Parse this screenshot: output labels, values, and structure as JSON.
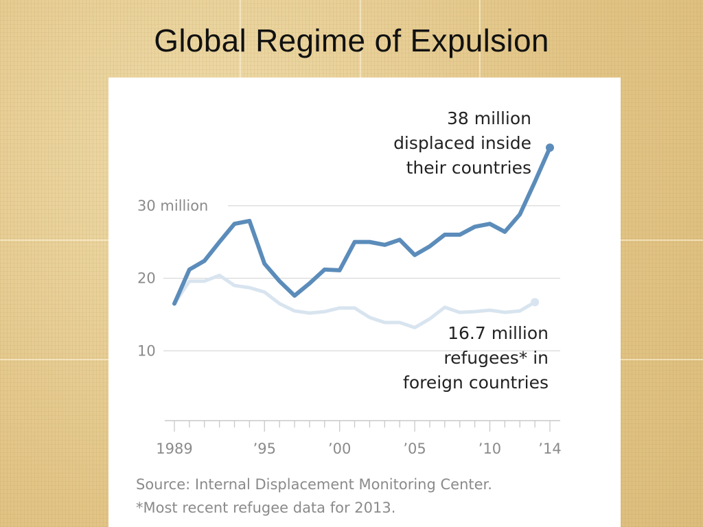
{
  "slide": {
    "title": "Global Regime of Expulsion"
  },
  "chart_data": {
    "type": "line",
    "x": [
      1989,
      1990,
      1991,
      1992,
      1993,
      1994,
      1995,
      1996,
      1997,
      1998,
      1999,
      2000,
      2001,
      2002,
      2003,
      2004,
      2005,
      2006,
      2007,
      2008,
      2009,
      2010,
      2011,
      2012,
      2013,
      2014
    ],
    "xlim": [
      1989,
      2014
    ],
    "ylim": [
      0,
      40
    ],
    "series": [
      {
        "id": "displaced",
        "color": "#5b8cba",
        "values": [
          16.5,
          21.2,
          22.4,
          25.0,
          27.5,
          27.9,
          22.0,
          19.6,
          17.6,
          19.3,
          21.2,
          21.1,
          25.0,
          25.0,
          24.6,
          25.3,
          23.2,
          24.4,
          26.0,
          26.0,
          27.1,
          27.5,
          26.4,
          28.8,
          33.3,
          38.0
        ]
      },
      {
        "id": "refugees",
        "color": "#d8e4ef",
        "values": [
          16.5,
          19.6,
          19.6,
          20.4,
          19.0,
          18.7,
          18.1,
          16.5,
          15.5,
          15.2,
          15.4,
          15.9,
          15.9,
          14.6,
          13.9,
          13.9,
          13.2,
          14.4,
          16.0,
          15.3,
          15.4,
          15.6,
          15.3,
          15.5,
          16.7,
          null
        ]
      }
    ],
    "y_ticks": [
      {
        "value": 30,
        "label": "30 million"
      },
      {
        "value": 20,
        "label": "20"
      },
      {
        "value": 10,
        "label": "10"
      }
    ],
    "x_ticks": [
      {
        "value": 1989,
        "label": "1989"
      },
      {
        "value": 1995,
        "label": "’95"
      },
      {
        "value": 2000,
        "label": "’00"
      },
      {
        "value": 2005,
        "label": "’05"
      },
      {
        "value": 2010,
        "label": "’10"
      },
      {
        "value": 2014,
        "label": "’14"
      }
    ],
    "annotations": {
      "displaced": [
        "38 million",
        "displaced inside",
        "their countries"
      ],
      "refugees": [
        "16.7 million",
        "refugees* in",
        "foreign countries"
      ]
    },
    "notes": {
      "source": "Source: Internal Displacement Monitoring Center.",
      "footnote": "*Most recent refugee data for 2013."
    }
  }
}
